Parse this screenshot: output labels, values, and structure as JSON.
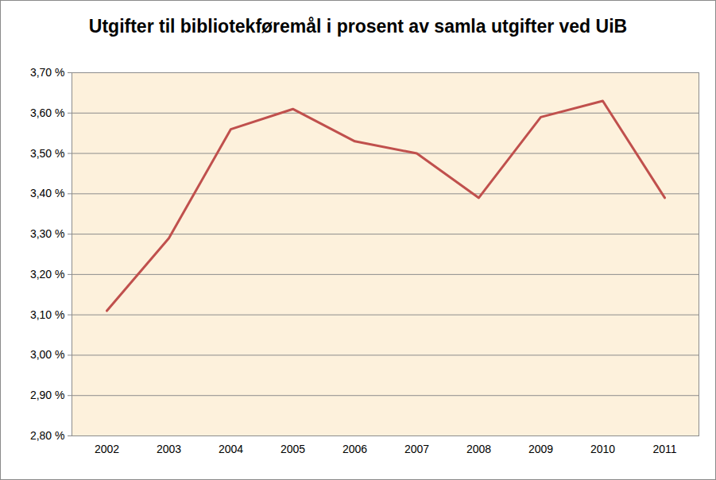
{
  "chart_data": {
    "type": "line",
    "title": "Utgifter til bibliotekføremål i prosent av samla utgifter ved UiB",
    "categories": [
      "2002",
      "2003",
      "2004",
      "2005",
      "2006",
      "2007",
      "2008",
      "2009",
      "2010",
      "2011"
    ],
    "values": [
      3.11,
      3.29,
      3.56,
      3.61,
      3.53,
      3.5,
      3.39,
      3.59,
      3.63,
      3.39
    ],
    "color": "#c0504d",
    "ylim": [
      2.8,
      3.7
    ],
    "yticks": [
      {
        "value": 2.8,
        "label": "2,80 %"
      },
      {
        "value": 2.9,
        "label": "2,90 %"
      },
      {
        "value": 3.0,
        "label": "3,00 %"
      },
      {
        "value": 3.1,
        "label": "3,10 %"
      },
      {
        "value": 3.2,
        "label": "3,20 %"
      },
      {
        "value": 3.3,
        "label": "3,30 %"
      },
      {
        "value": 3.4,
        "label": "3,40 %"
      },
      {
        "value": 3.5,
        "label": "3,50 %"
      },
      {
        "value": 3.6,
        "label": "3,60 %"
      },
      {
        "value": 3.7,
        "label": "3,70 %"
      }
    ],
    "grid": true
  }
}
